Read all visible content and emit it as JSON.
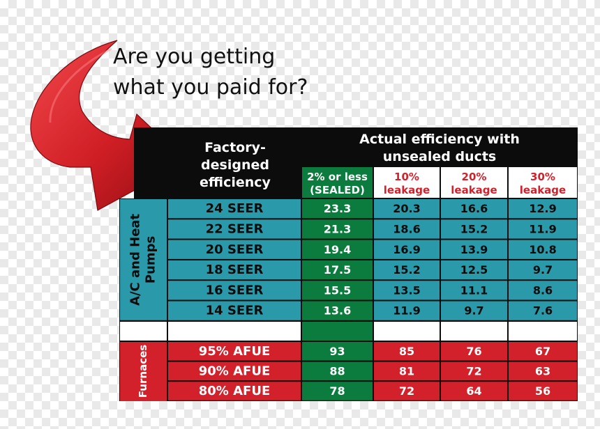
{
  "headline": {
    "line1": "Are you getting",
    "line2": "what you paid for?"
  },
  "colors": {
    "black": "#0c0c0c",
    "teal": "#2a99a9",
    "green": "#0b7c3d",
    "red": "#d3212c",
    "white": "#ffffff",
    "leakage_label": "#d3212c"
  },
  "chart_data": {
    "type": "table",
    "header": {
      "factory_label": [
        "Factory-",
        "designed",
        "efficiency"
      ],
      "actual_label": [
        "Actual efficiency with",
        "unsealed ducts"
      ],
      "columns": [
        {
          "line1": "2% or less",
          "line2": "(SEALED)"
        },
        {
          "line1": "10%",
          "line2": "leakage"
        },
        {
          "line1": "20%",
          "line2": "leakage"
        },
        {
          "line1": "30%",
          "line2": "leakage"
        }
      ]
    },
    "groups": [
      {
        "label": [
          "A/C and Heat",
          "Pumps"
        ],
        "color": "teal",
        "rows": [
          {
            "rating": "24 SEER",
            "values": [
              "23.3",
              "20.3",
              "16.6",
              "12.9"
            ]
          },
          {
            "rating": "22 SEER",
            "values": [
              "21.3",
              "18.6",
              "15.2",
              "11.9"
            ]
          },
          {
            "rating": "20 SEER",
            "values": [
              "19.4",
              "16.9",
              "13.9",
              "10.8"
            ]
          },
          {
            "rating": "18 SEER",
            "values": [
              "17.5",
              "15.2",
              "12.5",
              "9.7"
            ]
          },
          {
            "rating": "16 SEER",
            "values": [
              "15.5",
              "13.5",
              "11.1",
              "8.6"
            ]
          },
          {
            "rating": "14 SEER",
            "values": [
              "13.6",
              "11.9",
              "9.7",
              "7.6"
            ]
          }
        ]
      },
      {
        "label": [
          "Furnaces"
        ],
        "color": "red",
        "rows": [
          {
            "rating": "95% AFUE",
            "values": [
              "93",
              "85",
              "76",
              "67"
            ]
          },
          {
            "rating": "90% AFUE",
            "values": [
              "88",
              "81",
              "72",
              "63"
            ]
          },
          {
            "rating": "80% AFUE",
            "values": [
              "78",
              "72",
              "64",
              "56"
            ]
          }
        ]
      }
    ]
  }
}
